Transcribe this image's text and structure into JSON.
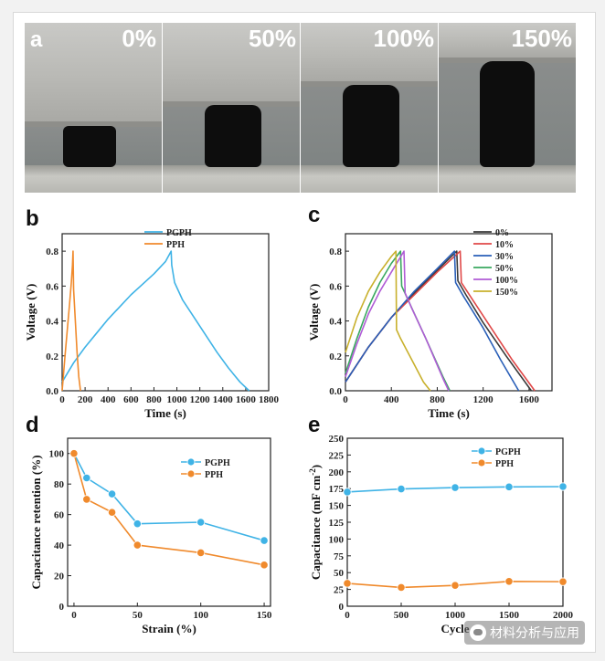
{
  "panel_a": {
    "letter": "a",
    "strains": [
      "0%",
      "50%",
      "100%",
      "150%"
    ]
  },
  "chart_data": [
    {
      "panel": "b",
      "type": "line",
      "xlabel": "Time (s)",
      "ylabel": "Voltage (V)",
      "xlim": [
        0,
        1800
      ],
      "ylim": [
        0,
        0.9
      ],
      "xticks": [
        0,
        200,
        400,
        600,
        800,
        1000,
        1200,
        1400,
        1600,
        1800
      ],
      "yticks": [
        0.0,
        0.2,
        0.4,
        0.6,
        0.8
      ],
      "legend_position": "top-right",
      "series": [
        {
          "name": "PGPH",
          "color": "#3fb3e6",
          "x": [
            0,
            100,
            200,
            300,
            400,
            500,
            600,
            700,
            800,
            900,
            950,
            955,
            980,
            1050,
            1150,
            1250,
            1350,
            1450,
            1550,
            1630
          ],
          "y": [
            0.05,
            0.16,
            0.25,
            0.33,
            0.41,
            0.48,
            0.55,
            0.61,
            0.67,
            0.74,
            0.8,
            0.72,
            0.62,
            0.52,
            0.42,
            0.32,
            0.22,
            0.13,
            0.05,
            0.0
          ]
        },
        {
          "name": "PPH",
          "color": "#f08a2c",
          "x": [
            0,
            10,
            25,
            45,
            65,
            80,
            90,
            95,
            100,
            115,
            130,
            145,
            160
          ],
          "y": [
            0.0,
            0.08,
            0.2,
            0.35,
            0.5,
            0.62,
            0.72,
            0.8,
            0.58,
            0.4,
            0.22,
            0.08,
            0.0
          ]
        }
      ]
    },
    {
      "panel": "c",
      "type": "line",
      "xlabel": "Time (s)",
      "ylabel": "Voltage (V)",
      "xlim": [
        0,
        1800
      ],
      "ylim": [
        0,
        0.9
      ],
      "xticks": [
        0,
        400,
        800,
        1200,
        1600
      ],
      "yticks": [
        0.0,
        0.2,
        0.4,
        0.6,
        0.8
      ],
      "legend_position": "top-right",
      "series": [
        {
          "name": "0%",
          "color": "#3a3a3a",
          "x": [
            0,
            200,
            400,
            600,
            800,
            970,
            980,
            1050,
            1200,
            1400,
            1620
          ],
          "y": [
            0.05,
            0.25,
            0.42,
            0.56,
            0.69,
            0.8,
            0.63,
            0.55,
            0.39,
            0.2,
            0.0
          ]
        },
        {
          "name": "10%",
          "color": "#e04848",
          "x": [
            0,
            200,
            400,
            600,
            800,
            1000,
            1010,
            1080,
            1250,
            1450,
            1650
          ],
          "y": [
            0.05,
            0.25,
            0.42,
            0.55,
            0.68,
            0.8,
            0.62,
            0.55,
            0.38,
            0.18,
            0.0
          ]
        },
        {
          "name": "30%",
          "color": "#2a5fb8",
          "x": [
            0,
            200,
            400,
            600,
            800,
            950,
            960,
            1030,
            1200,
            1350,
            1510
          ],
          "y": [
            0.05,
            0.25,
            0.42,
            0.57,
            0.7,
            0.8,
            0.62,
            0.54,
            0.36,
            0.18,
            0.0
          ]
        },
        {
          "name": "50%",
          "color": "#3aa860",
          "x": [
            0,
            100,
            200,
            300,
            400,
            480,
            490,
            560,
            700,
            850,
            910
          ],
          "y": [
            0.1,
            0.3,
            0.48,
            0.62,
            0.73,
            0.8,
            0.6,
            0.5,
            0.3,
            0.08,
            0.0
          ]
        },
        {
          "name": "100%",
          "color": "#b05cd6",
          "x": [
            0,
            100,
            200,
            300,
            400,
            510,
            520,
            580,
            700,
            850,
            900
          ],
          "y": [
            0.08,
            0.27,
            0.44,
            0.57,
            0.68,
            0.8,
            0.56,
            0.47,
            0.3,
            0.07,
            0.0
          ]
        },
        {
          "name": "150%",
          "color": "#c8b02c",
          "x": [
            0,
            100,
            200,
            300,
            400,
            440,
            445,
            480,
            560,
            680,
            740
          ],
          "y": [
            0.22,
            0.42,
            0.57,
            0.68,
            0.77,
            0.8,
            0.35,
            0.3,
            0.2,
            0.05,
            0.0
          ]
        }
      ]
    },
    {
      "panel": "d",
      "type": "line",
      "xlabel": "Strain (%)",
      "ylabel": "Capacitance retention (%)",
      "xlim": [
        -5,
        155
      ],
      "ylim": [
        0,
        110
      ],
      "xticks": [
        0,
        50,
        100,
        150
      ],
      "yticks": [
        0,
        20,
        40,
        60,
        80,
        100
      ],
      "legend_position": "top-right",
      "series": [
        {
          "name": "PGPH",
          "color": "#3fb3e6",
          "x": [
            0,
            10,
            30,
            50,
            100,
            150
          ],
          "y": [
            100,
            84,
            73.5,
            54,
            55,
            43
          ]
        },
        {
          "name": "PPH",
          "color": "#f08a2c",
          "x": [
            0,
            10,
            30,
            50,
            100,
            150
          ],
          "y": [
            100,
            70,
            61.5,
            40,
            35,
            27
          ]
        }
      ]
    },
    {
      "panel": "e",
      "type": "line",
      "xlabel": "Cycle",
      "ylabel": "Capacitance (mF cm",
      "ylabel_sup": "-2",
      "ylabel_end": ")",
      "xlim": [
        0,
        2000
      ],
      "ylim": [
        0,
        250
      ],
      "xticks": [
        0,
        500,
        1000,
        1500,
        2000
      ],
      "yticks": [
        0,
        25,
        50,
        75,
        100,
        125,
        150,
        175,
        200,
        225,
        250
      ],
      "legend_position": "top-right",
      "series": [
        {
          "name": "PGPH",
          "color": "#3fb3e6",
          "x": [
            0,
            500,
            1000,
            1500,
            2000
          ],
          "y": [
            170,
            174.5,
            176.5,
            177.5,
            178
          ]
        },
        {
          "name": "PPH",
          "color": "#f08a2c",
          "x": [
            0,
            500,
            1000,
            1500,
            2000
          ],
          "y": [
            34,
            28,
            31,
            37,
            36.5
          ]
        }
      ]
    }
  ],
  "watermark": {
    "text": "材料分析与应用"
  }
}
